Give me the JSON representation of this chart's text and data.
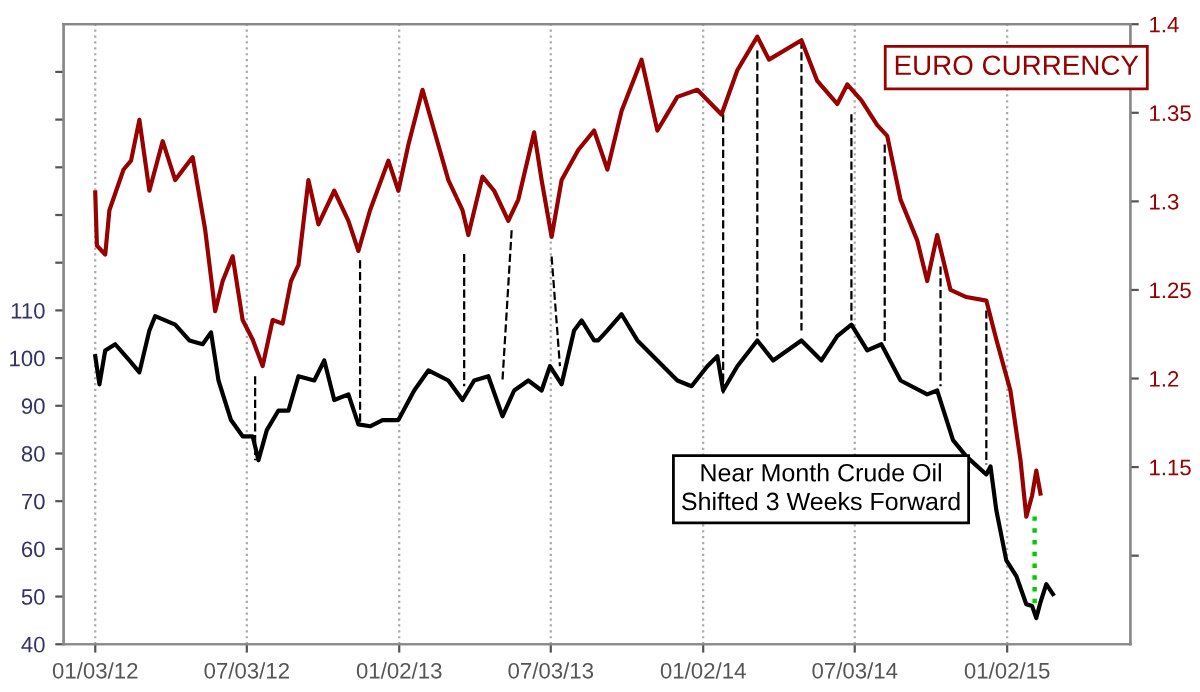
{
  "chart_data": {
    "type": "line",
    "xlim": [
      "2011-11-26",
      "2015-05-30"
    ],
    "xticks": [
      {
        "value": "2012-01-03",
        "label": "01/03/12"
      },
      {
        "value": "2012-07-03",
        "label": "07/03/12"
      },
      {
        "value": "2013-01-02",
        "label": "01/02/13"
      },
      {
        "value": "2013-07-03",
        "label": "07/03/13"
      },
      {
        "value": "2014-01-02",
        "label": "01/02/14"
      },
      {
        "value": "2014-07-03",
        "label": "07/03/14"
      },
      {
        "value": "2015-01-02",
        "label": "01/02/15"
      }
    ],
    "ylim": [
      40,
      170
    ],
    "yticks": [
      40,
      50,
      60,
      70,
      80,
      90,
      100,
      110,
      {
        "value": 120,
        "label": null
      },
      {
        "value": 130,
        "label": null
      },
      {
        "value": 140,
        "label": null
      },
      {
        "value": 150,
        "label": null
      },
      {
        "value": 160,
        "label": null
      }
    ],
    "y2lim": [
      1.05,
      1.4
    ],
    "y2ticks": [
      {
        "value": 1.1,
        "label": null
      },
      1.15,
      1.2,
      1.25,
      1.3,
      1.35,
      1.4
    ],
    "grid": "x",
    "legend": false,
    "series": [
      {
        "name": "EURO CURRENCY",
        "color": "#990000",
        "axis": "y2",
        "x": [
          "2012-01-03",
          "2012-01-05",
          "2012-01-15",
          "2012-01-20",
          "2012-02-06",
          "2012-02-15",
          "2012-02-25",
          "2012-03-08",
          "2012-03-24",
          "2012-04-08",
          "2012-04-29",
          "2012-05-14",
          "2012-05-26",
          "2012-06-04",
          "2012-06-16",
          "2012-06-28",
          "2012-07-10",
          "2012-07-22",
          "2012-08-03",
          "2012-08-15",
          "2012-08-25",
          "2012-09-03",
          "2012-09-15",
          "2012-09-27",
          "2012-10-16",
          "2012-11-02",
          "2012-11-14",
          "2012-11-28",
          "2012-12-20",
          "2013-01-01",
          "2013-01-13",
          "2013-01-30",
          "2013-02-13",
          "2013-03-02",
          "2013-03-19",
          "2013-03-26",
          "2013-04-12",
          "2013-04-26",
          "2013-05-13",
          "2013-05-25",
          "2013-06-13",
          "2013-06-22",
          "2013-07-04",
          "2013-07-16",
          "2013-08-05",
          "2013-08-24",
          "2013-09-09",
          "2013-09-26",
          "2013-10-20",
          "2013-11-08",
          "2013-12-02",
          "2013-12-26",
          "2014-01-24",
          "2014-02-12",
          "2014-03-08",
          "2014-03-22",
          "2014-04-30",
          "2014-05-19",
          "2014-06-12",
          "2014-06-24",
          "2014-07-11",
          "2014-07-30",
          "2014-08-11",
          "2014-08-27",
          "2014-09-16",
          "2014-09-28",
          "2014-10-10",
          "2014-10-26",
          "2014-11-14",
          "2014-12-08",
          "2014-12-20",
          "2015-01-06",
          "2015-01-18",
          "2015-01-25",
          "2015-02-01",
          "2015-02-06",
          "2015-02-11"
        ],
        "values": [
          1.305,
          1.275,
          1.27,
          1.295,
          1.318,
          1.323,
          1.346,
          1.306,
          1.334,
          1.312,
          1.325,
          1.284,
          1.238,
          1.255,
          1.269,
          1.233,
          1.222,
          1.207,
          1.233,
          1.231,
          1.255,
          1.264,
          1.312,
          1.287,
          1.306,
          1.289,
          1.272,
          1.295,
          1.323,
          1.306,
          1.332,
          1.363,
          1.34,
          1.312,
          1.295,
          1.281,
          1.314,
          1.306,
          1.289,
          1.301,
          1.339,
          1.312,
          1.28,
          1.312,
          1.329,
          1.34,
          1.318,
          1.351,
          1.38,
          1.34,
          1.359,
          1.363,
          1.349,
          1.374,
          1.393,
          1.38,
          1.391,
          1.368,
          1.355,
          1.366,
          1.357,
          1.343,
          1.337,
          1.301,
          1.278,
          1.255,
          1.281,
          1.25,
          1.246,
          1.244,
          1.222,
          1.193,
          1.154,
          1.122,
          1.134,
          1.148,
          1.135
        ]
      },
      {
        "name": "Near Month Crude Oil\nShifted 3 Weeks Forward",
        "color": "#000000",
        "x": [
          "2012-01-03",
          "2012-01-08",
          "2012-01-15",
          "2012-01-27",
          "2012-02-13",
          "2012-02-25",
          "2012-03-08",
          "2012-03-15",
          "2012-04-08",
          "2012-04-25",
          "2012-05-11",
          "2012-05-21",
          "2012-05-30",
          "2012-06-14",
          "2012-06-28",
          "2012-07-10",
          "2012-07-17",
          "2012-07-27",
          "2012-08-10",
          "2012-08-22",
          "2012-09-03",
          "2012-09-22",
          "2012-10-04",
          "2012-10-16",
          "2012-11-02",
          "2012-11-14",
          "2012-11-28",
          "2012-12-13",
          "2013-01-01",
          "2013-01-20",
          "2013-02-06",
          "2013-03-02",
          "2013-03-19",
          "2013-04-02",
          "2013-04-19",
          "2013-05-06",
          "2013-05-20",
          "2013-06-06",
          "2013-06-22",
          "2013-07-02",
          "2013-07-16",
          "2013-07-31",
          "2013-08-09",
          "2013-08-24",
          "2013-08-29",
          "2013-09-09",
          "2013-09-26",
          "2013-10-15",
          "2013-11-08",
          "2013-12-02",
          "2013-12-19",
          "2014-01-07",
          "2014-01-19",
          "2014-01-26",
          "2014-02-12",
          "2014-03-08",
          "2014-03-27",
          "2014-04-30",
          "2014-05-24",
          "2014-06-12",
          "2014-06-29",
          "2014-07-18",
          "2014-08-04",
          "2014-08-27",
          "2014-09-28",
          "2014-10-10",
          "2014-10-29",
          "2014-11-14",
          "2014-12-08",
          "2014-12-13",
          "2014-12-20",
          "2015-01-01",
          "2015-01-13",
          "2015-01-25",
          "2015-02-01",
          "2015-02-06",
          "2015-02-11",
          "2015-02-18",
          "2015-02-26"
        ],
        "values": [
          100.4,
          94.5,
          101.6,
          102.9,
          99.5,
          97,
          105.8,
          108.8,
          107,
          103.7,
          102.9,
          105.4,
          95.3,
          87,
          83.6,
          83.6,
          78.6,
          84.9,
          89,
          89,
          96.2,
          95.3,
          99.5,
          91.2,
          92.4,
          86.1,
          85.7,
          87,
          87,
          93.2,
          97.4,
          95.3,
          91.2,
          95.3,
          96.2,
          87.8,
          93.2,
          95.3,
          93.2,
          98.3,
          94.5,
          105.8,
          107.9,
          103.7,
          103.7,
          105.8,
          109.2,
          103.7,
          99.5,
          95.3,
          94.1,
          98.3,
          100.4,
          93.2,
          98.3,
          103.7,
          99.5,
          103.7,
          99.5,
          104.6,
          107,
          101.6,
          102.9,
          95.3,
          92.4,
          93.2,
          82.8,
          79.4,
          75.6,
          77.3,
          68.1,
          57.6,
          54.3,
          48.4,
          48,
          45.5,
          48.8,
          52.6,
          50.5
        ]
      },
      {
        "color": "#000000",
        "line_style": "dashed",
        "x": [
          "2012-07-13",
          "2012-07-13"
        ],
        "values": [
          96.2,
          78.6
        ]
      },
      {
        "color": "#000000",
        "line_style": "dashed",
        "x": [
          "2012-11-16",
          "2012-11-16"
        ],
        "values": [
          120.5,
          86.1
        ]
      },
      {
        "color": "#000000",
        "line_style": "dashed",
        "x": [
          "2013-03-21",
          "2013-03-21"
        ],
        "values": [
          121.8,
          94.1
        ]
      },
      {
        "color": "#000000",
        "line_style": "dashed",
        "x": [
          "2013-05-17",
          "2013-05-06"
        ],
        "values": [
          126.8,
          95.3
        ]
      },
      {
        "color": "#000000",
        "line_style": "dashed",
        "x": [
          "2013-07-04",
          "2013-07-14"
        ],
        "values": [
          121.3,
          98.3
        ]
      },
      {
        "color": "#000000",
        "line_style": "dashed",
        "x": [
          "2014-01-26",
          "2014-01-26"
        ],
        "values": [
          151.1,
          92.4
        ]
      },
      {
        "color": "#000000",
        "line_style": "dashed",
        "x": [
          "2014-03-08",
          "2014-03-08"
        ],
        "values": [
          164.5,
          104.6
        ]
      },
      {
        "color": "#000000",
        "line_style": "dashed",
        "x": [
          "2014-04-30",
          "2014-04-30"
        ],
        "values": [
          166.6,
          105.8
        ]
      },
      {
        "color": "#000000",
        "line_style": "dashed",
        "x": [
          "2014-06-29",
          "2014-06-29"
        ],
        "values": [
          151.1,
          107.9
        ]
      },
      {
        "color": "#000000",
        "line_style": "dashed",
        "x": [
          "2014-08-08",
          "2014-08-08"
        ],
        "values": [
          144.8,
          102.9
        ]
      },
      {
        "color": "#000000",
        "line_style": "dashed",
        "x": [
          "2014-10-14",
          "2014-10-14"
        ],
        "values": [
          119.2,
          94.1
        ]
      },
      {
        "color": "#000000",
        "line_style": "dashed",
        "x": [
          "2014-12-08",
          "2014-12-08"
        ],
        "values": [
          110,
          77.7
        ]
      },
      {
        "color": "#00cc00",
        "line_style": "dotted",
        "x": [
          "2015-02-04",
          "2015-02-04"
        ],
        "values": [
          66.8,
          48.4
        ]
      }
    ]
  }
}
